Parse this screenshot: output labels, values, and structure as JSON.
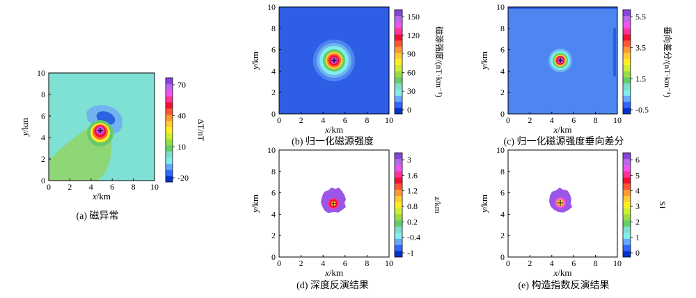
{
  "chart_data": [
    {
      "id": "a",
      "type": "heatmap",
      "caption": "(a) 磁异常",
      "xlabel_var": "x",
      "xlabel_unit": "/km",
      "ylabel_var": "y",
      "ylabel_unit": "/km",
      "xticks": [
        "0",
        "2",
        "4",
        "6",
        "8",
        "10"
      ],
      "yticks": [
        "0",
        "2",
        "4",
        "6",
        "8",
        "10"
      ],
      "xlim": [
        0,
        10
      ],
      "ylim": [
        0,
        10
      ],
      "source_center": [
        5,
        5
      ],
      "colorbar_label": "ΔT/nT",
      "colorbar_ticks": [
        "70",
        "40",
        "10",
        "-20"
      ],
      "colorbar_colors": [
        "#0033cc",
        "#3366ff",
        "#66aaff",
        "#7feeee",
        "#80ddcc",
        "#66cc66",
        "#99dd44",
        "#ccee33",
        "#ffee22",
        "#ffcc33",
        "#ff9933",
        "#ff5533",
        "#ee1133",
        "#ff3399",
        "#ee55ee",
        "#bb66ee",
        "#8844dd"
      ],
      "background_color": "#7fe0d4"
    },
    {
      "id": "b",
      "type": "heatmap",
      "caption": "(b) 归一化磁源强度",
      "xlabel_var": "x",
      "xlabel_unit": "/km",
      "ylabel_var": "y",
      "ylabel_unit": "/km",
      "xticks": [
        "0",
        "2",
        "4",
        "6",
        "8",
        "10"
      ],
      "yticks": [
        "0",
        "2",
        "4",
        "6",
        "8",
        "10"
      ],
      "xlim": [
        0,
        10
      ],
      "ylim": [
        0,
        10
      ],
      "source_center": [
        5,
        5
      ],
      "colorbar_label": "磁源强度/(nT·km⁻¹)",
      "colorbar_ticks": [
        "150",
        "120",
        "90",
        "60",
        "30",
        "0"
      ],
      "colorbar_colors": [
        "#0033cc",
        "#3366ff",
        "#66aaff",
        "#7feeee",
        "#80ddcc",
        "#66cc66",
        "#99dd44",
        "#ccee33",
        "#ffee22",
        "#ffcc33",
        "#ff9933",
        "#ff5533",
        "#ee1133",
        "#ff3399",
        "#ee55ee",
        "#bb66ee",
        "#8844dd"
      ],
      "background_color": "#2e5de6"
    },
    {
      "id": "c",
      "type": "heatmap",
      "caption": "(c) 归一化磁源强度垂向差分",
      "xlabel_var": "x",
      "xlabel_unit": "/km",
      "ylabel_var": "y",
      "ylabel_unit": "/km",
      "xticks": [
        "0",
        "2",
        "4",
        "6",
        "8",
        "10"
      ],
      "yticks": [
        "0",
        "2",
        "4",
        "6",
        "8",
        "10"
      ],
      "xlim": [
        0,
        10
      ],
      "ylim": [
        0,
        10
      ],
      "source_center": [
        5,
        5
      ],
      "colorbar_label": "垂向差分/(nT·km⁻¹)",
      "colorbar_ticks": [
        "5.5",
        "3.5",
        "1.5",
        "-0.5"
      ],
      "colorbar_colors": [
        "#0033cc",
        "#3366ff",
        "#66aaff",
        "#7feeee",
        "#80ddcc",
        "#66cc66",
        "#99dd44",
        "#ccee33",
        "#ffee22",
        "#ffcc33",
        "#ff9933",
        "#ff5533",
        "#ee1133",
        "#ff3399",
        "#ee55ee",
        "#bb66ee",
        "#8844dd"
      ],
      "background_color": "#4d86f0"
    },
    {
      "id": "d",
      "type": "heatmap",
      "caption": "(d) 深度反演结果",
      "xlabel_var": "x",
      "xlabel_unit": "/km",
      "ylabel_var": "y",
      "ylabel_unit": "/km",
      "xticks": [
        "0",
        "2",
        "4",
        "6",
        "8",
        "10"
      ],
      "yticks": [
        "0",
        "2",
        "4",
        "6",
        "8",
        "10"
      ],
      "xlim": [
        0,
        10
      ],
      "ylim": [
        0,
        10
      ],
      "source_center": [
        5,
        5
      ],
      "colorbar_label": "z/km",
      "colorbar_ticks": [
        "3",
        "1.6",
        "1.2",
        "0.8",
        "0.2",
        "-0.4",
        "-1"
      ],
      "colorbar_colors": [
        "#0033cc",
        "#3366ff",
        "#66aaff",
        "#7feeee",
        "#80ddcc",
        "#66cc66",
        "#99dd44",
        "#ccee33",
        "#ffee22",
        "#ffcc33",
        "#ff9933",
        "#ff5533",
        "#ee1133",
        "#ff3399",
        "#ee55ee",
        "#bb66ee",
        "#8844dd"
      ],
      "background_color": "#ffffff"
    },
    {
      "id": "e",
      "type": "heatmap",
      "caption": "(e) 构造指数反演结果",
      "xlabel_var": "x",
      "xlabel_unit": "/km",
      "ylabel_var": "y",
      "ylabel_unit": "/km",
      "xticks": [
        "0",
        "2",
        "4",
        "6",
        "8",
        "10"
      ],
      "yticks": [
        "0",
        "2",
        "4",
        "6",
        "8",
        "10"
      ],
      "xlim": [
        0,
        10
      ],
      "ylim": [
        0,
        10
      ],
      "source_center": [
        5,
        5
      ],
      "colorbar_label": "SI",
      "colorbar_ticks": [
        "6",
        "5",
        "4",
        "3",
        "2",
        "1",
        "0"
      ],
      "colorbar_colors": [
        "#0033cc",
        "#3366ff",
        "#66aaff",
        "#7feeee",
        "#80ddcc",
        "#66cc66",
        "#99dd44",
        "#ccee33",
        "#ffee22",
        "#ffcc33",
        "#ff9933",
        "#ff5533",
        "#ee1133",
        "#ff3399",
        "#ee55ee",
        "#bb66ee",
        "#8844dd"
      ],
      "background_color": "#ffffff"
    }
  ]
}
